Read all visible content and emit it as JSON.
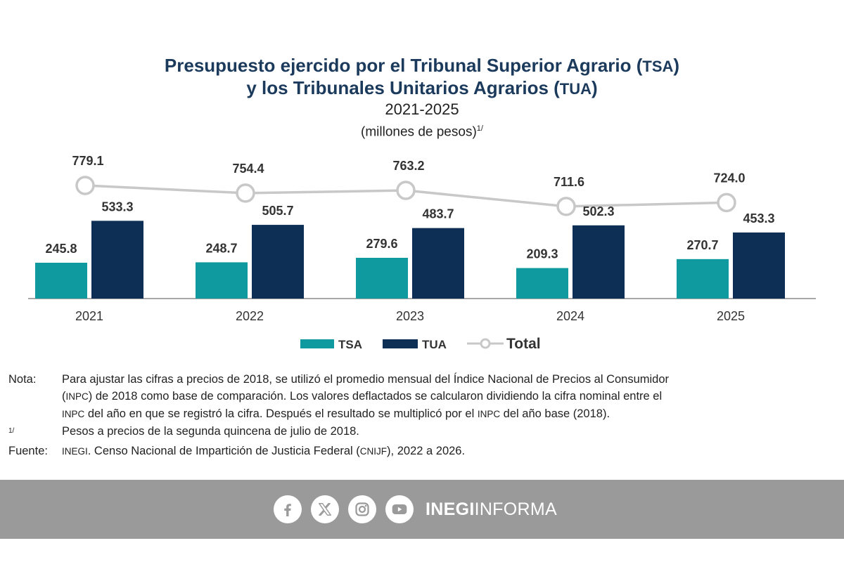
{
  "title": {
    "line1_pre": "Presupuesto ejercido por el Tribunal Superior Agrario (",
    "line1_abbr": "TSA",
    "line1_post": ")",
    "line2_pre": "y los Tribunales Unitarios Agrarios (",
    "line2_abbr": "TUA",
    "line2_post": ")",
    "period": "2021-2025",
    "units": "(millones de pesos)",
    "units_footnote": "1/"
  },
  "chart_data": {
    "type": "bar",
    "categories": [
      "2021",
      "2022",
      "2023",
      "2024",
      "2025"
    ],
    "series": [
      {
        "name": "TSA",
        "type": "bar",
        "values": [
          245.8,
          248.7,
          279.6,
          209.3,
          270.7
        ],
        "color": "#0e9a9e"
      },
      {
        "name": "TUA",
        "type": "bar",
        "values": [
          533.3,
          505.7,
          483.7,
          502.3,
          453.3
        ],
        "color": "#0d2e55"
      },
      {
        "name": "Total",
        "type": "line",
        "values": [
          779.1,
          754.4,
          763.2,
          711.6,
          724.0
        ],
        "color": "#c8c8c8"
      }
    ],
    "value_labels": {
      "TSA": [
        "245.8",
        "248.7",
        "279.6",
        "209.3",
        "270.7"
      ],
      "TUA": [
        "533.3",
        "505.7",
        "483.7",
        "502.3",
        "453.3"
      ],
      "Total": [
        "779.1",
        "754.4",
        "763.2",
        "711.6",
        "724.0"
      ]
    },
    "grid": false,
    "legend_position": "bottom"
  },
  "notes": {
    "nota_key": "Nota:",
    "nota_line1": "Para ajustar las cifras a precios de 2018, se utilizó el promedio mensual del Índice Nacional de Precios al Consumidor",
    "nota_line2_open": "(",
    "nota_line2_abbr": "INPC",
    "nota_line2_rest": ") de 2018 como base de comparación. Los valores deflactados se calcularon dividiendo la cifra nominal entre el",
    "nota_line3_abbr": "INPC",
    "nota_line3_mid": " del año en que se registró la cifra. Después el resultado se multiplicó por el ",
    "nota_line3_abbr2": "INPC",
    "nota_line3_end": " del año base (2018).",
    "fn_key": "1/",
    "fn_text": "Pesos a precios de la segunda quincena de julio de 2018.",
    "fuente_key": "Fuente:",
    "fuente_abbr": "INEGI",
    "fuente_mid": ". Censo Nacional de Impartición de Justicia Federal (",
    "fuente_abbr2": "CNIJF",
    "fuente_end": "), 2022 a 2026."
  },
  "footer": {
    "brand_bold": "INEGI",
    "brand_regular": "INFORMA",
    "background": "#9a9a9a",
    "icons": [
      "facebook-icon",
      "x-icon",
      "instagram-icon",
      "youtube-icon"
    ]
  }
}
